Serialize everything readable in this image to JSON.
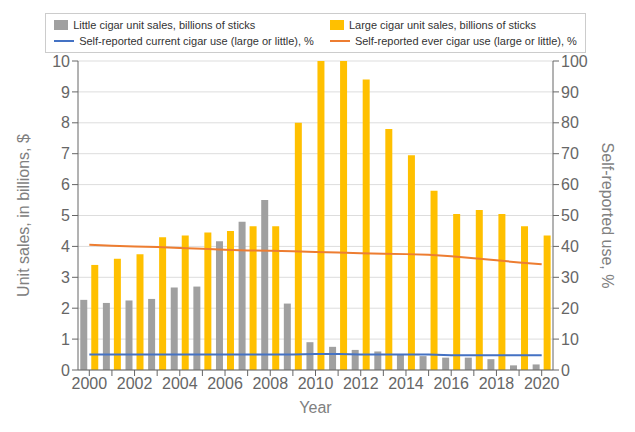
{
  "chart_data": {
    "type": "bar",
    "categories": [
      "2000",
      null,
      "2002",
      null,
      "2004",
      null,
      "2006",
      null,
      "2008",
      null,
      "2010",
      null,
      "2012",
      null,
      "2014",
      null,
      "2016",
      null,
      "2018",
      null,
      "2020"
    ],
    "xlabel": "Year",
    "ylabel": "Unit sales, in billions, $",
    "y2label": "Self-reported use, %",
    "ylim": [
      0,
      10
    ],
    "yticks": [
      0,
      1,
      2,
      3,
      4,
      5,
      6,
      7,
      8,
      9,
      10
    ],
    "y2lim": [
      0,
      100
    ],
    "y2ticks": [
      0,
      10,
      20,
      30,
      40,
      50,
      60,
      70,
      80,
      90,
      100
    ],
    "grid": true,
    "legend": "top",
    "series": [
      {
        "name": "Little cigar unit sales, billions of sticks",
        "type": "bar",
        "color": "#A0A0A0",
        "values": [
          2.27,
          2.17,
          2.25,
          2.3,
          2.67,
          2.7,
          4.17,
          4.8,
          5.5,
          2.15,
          0.9,
          0.75,
          0.65,
          0.6,
          0.5,
          0.45,
          0.4,
          0.4,
          0.35,
          0.15,
          0.18
        ]
      },
      {
        "name": "Large cigar unit sales, billions of sticks",
        "type": "bar",
        "color": "#FFC000",
        "values": [
          3.4,
          3.6,
          3.75,
          4.3,
          4.35,
          4.45,
          4.5,
          4.65,
          4.65,
          8.0,
          10.0,
          10.0,
          9.4,
          7.8,
          6.95,
          5.8,
          5.05,
          5.18,
          5.05,
          4.65,
          4.35
        ]
      },
      {
        "name": "Self-reported current cigar use (large or little), %",
        "type": "line",
        "axis": "y2",
        "color": "#4472C4",
        "values": [
          5.0,
          5.0,
          5.0,
          5.0,
          5.0,
          5.0,
          5.0,
          5.0,
          5.0,
          5.0,
          5.2,
          5.2,
          5.0,
          5.0,
          5.0,
          5.0,
          4.8,
          4.8,
          4.8,
          4.8,
          4.8
        ]
      },
      {
        "name": "Self-reported ever cigar use (large or little), %",
        "type": "line",
        "axis": "y2",
        "color": "#ED7D31",
        "values": [
          40.5,
          40.2,
          40.0,
          39.8,
          39.5,
          39.2,
          38.9,
          38.7,
          38.6,
          38.4,
          38.2,
          38.0,
          37.8,
          37.6,
          37.5,
          37.3,
          36.8,
          36.2,
          35.5,
          34.8,
          34.2
        ]
      }
    ]
  }
}
